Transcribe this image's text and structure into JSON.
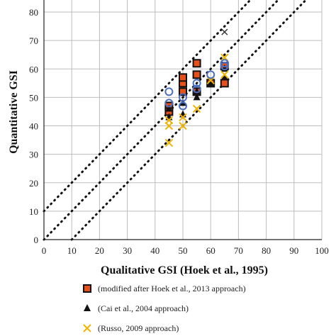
{
  "chart_data": {
    "type": "scatter",
    "xlabel": "Qualitative GSI (Hoek et al., 1995)",
    "ylabel": "Quantitative GSI",
    "xlim": [
      0,
      100
    ],
    "ylim": [
      0,
      85
    ],
    "xticks": [
      0,
      10,
      20,
      30,
      40,
      50,
      60,
      70,
      80,
      90,
      100
    ],
    "yticks": [
      0,
      10,
      20,
      30,
      40,
      50,
      60,
      70,
      80
    ],
    "grid": true,
    "legend_position": "bottom",
    "reference_lines": [
      {
        "slope": 1,
        "intercept": 10,
        "style": "dotted"
      },
      {
        "slope": 1,
        "intercept": 0,
        "style": "dotted"
      },
      {
        "slope": 1,
        "intercept": -10,
        "style": "dotted"
      }
    ],
    "colors": {
      "square_fill": "#e8501a",
      "square_edge": "#111111",
      "triangle": "#111111",
      "cross": "#f0b400",
      "circle": "#4a6fc0",
      "x_cross": "#333333"
    },
    "series": [
      {
        "name": "(modified after Hoek et al., 2013 approach)",
        "marker": "square",
        "points": [
          [
            45,
            47
          ],
          [
            45,
            45
          ],
          [
            50,
            55
          ],
          [
            50,
            57
          ],
          [
            50,
            52
          ],
          [
            55,
            62
          ],
          [
            55,
            58
          ],
          [
            55,
            52
          ],
          [
            60,
            55
          ],
          [
            65,
            55
          ],
          [
            65,
            61
          ]
        ]
      },
      {
        "name": "(Cai et al., 2004 approach)",
        "marker": "triangle",
        "points": [
          [
            45,
            43
          ],
          [
            45,
            46
          ],
          [
            50,
            44
          ],
          [
            50,
            48
          ],
          [
            55,
            50
          ],
          [
            55,
            52
          ],
          [
            60,
            55
          ],
          [
            65,
            57
          ],
          [
            65,
            60
          ]
        ]
      },
      {
        "name": "(Russo, 2009 approach)",
        "marker": "cross",
        "points": [
          [
            45,
            34
          ],
          [
            45,
            40
          ],
          [
            45,
            42
          ],
          [
            50,
            40
          ],
          [
            50,
            43
          ],
          [
            55,
            46
          ],
          [
            60,
            56
          ],
          [
            65,
            58
          ],
          [
            65,
            64
          ]
        ]
      },
      {
        "name": "",
        "marker": "circle",
        "points": [
          [
            45,
            52
          ],
          [
            45,
            48
          ],
          [
            50,
            50
          ],
          [
            50,
            47
          ],
          [
            55,
            55
          ],
          [
            55,
            53
          ],
          [
            60,
            58
          ],
          [
            65,
            62
          ],
          [
            65,
            61
          ]
        ]
      },
      {
        "name": "",
        "marker": "xcross",
        "points": [
          [
            65,
            73
          ]
        ]
      }
    ]
  }
}
